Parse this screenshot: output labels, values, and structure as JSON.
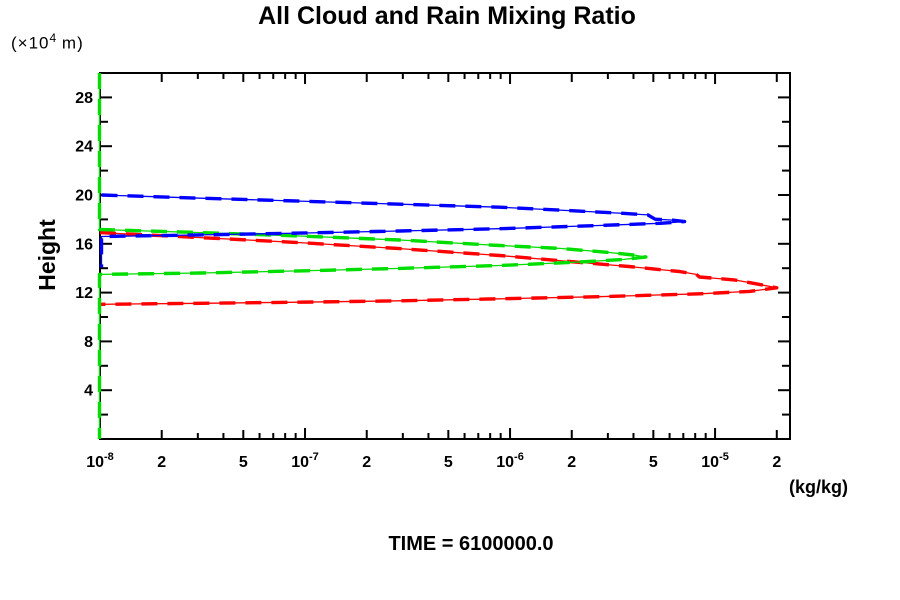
{
  "title": "All Cloud and Rain Mixing Ratio",
  "y_axis": {
    "title": "Height",
    "unit_prefix": "(×10",
    "unit_exp": "4",
    "unit_suffix": " m)"
  },
  "x_axis": {
    "unit": "(kg/kg)"
  },
  "footer": {
    "time_label": "TIME = 6100000.0"
  },
  "colors": {
    "series1": "#ff0000",
    "series2": "#00dd00",
    "series3": "#0000ff",
    "axis": "#000000"
  },
  "chart_data": {
    "type": "line",
    "title": "All Cloud and Rain Mixing Ratio",
    "xlabel": "(kg/kg)",
    "ylabel": "Height (×10^4 m)",
    "x_scale": "log",
    "xlim": [
      1e-08,
      2.32e-05
    ],
    "ylim": [
      0,
      30
    ],
    "grid": false,
    "legend": "none",
    "x_ticks_labeled": [
      {
        "value": 1e-08,
        "label": "10^-8"
      },
      {
        "value": 2e-08,
        "label": "2"
      },
      {
        "value": 5e-08,
        "label": "5"
      },
      {
        "value": 1e-07,
        "label": "10^-7"
      },
      {
        "value": 2e-07,
        "label": "2"
      },
      {
        "value": 5e-07,
        "label": "5"
      },
      {
        "value": 1e-06,
        "label": "10^-6"
      },
      {
        "value": 2e-06,
        "label": "2"
      },
      {
        "value": 5e-06,
        "label": "5"
      },
      {
        "value": 1e-05,
        "label": "10^-5"
      },
      {
        "value": 2e-05,
        "label": "2"
      }
    ],
    "y_ticks_labeled": [
      4,
      8,
      12,
      16,
      20,
      24,
      28
    ],
    "y_ticks_minor": [
      2,
      6,
      10,
      14,
      18,
      22,
      26
    ],
    "series": [
      {
        "name": "red-profile",
        "color": "#ff0000",
        "points": [
          [
            1e-08,
            16.92
          ],
          [
            3.1e-08,
            16.51
          ],
          [
            9.4e-08,
            16.1
          ],
          [
            2.9e-07,
            15.61
          ],
          [
            8.9e-07,
            15.04
          ],
          [
            1.95e-06,
            14.55
          ],
          [
            3.8e-06,
            14.14
          ],
          [
            6.7e-06,
            13.73
          ],
          [
            8.1e-06,
            13.49
          ],
          [
            8.4e-06,
            13.28
          ],
          [
            1.24e-05,
            13.04
          ],
          [
            1.55e-05,
            12.75
          ],
          [
            2e-05,
            12.39
          ],
          [
            1.47e-05,
            12.1
          ],
          [
            8.4e-06,
            11.9
          ],
          [
            2.7e-06,
            11.66
          ],
          [
            8.9e-07,
            11.49
          ],
          [
            2.9e-07,
            11.33
          ],
          [
            9.4e-08,
            11.21
          ],
          [
            3.1e-08,
            11.12
          ],
          [
            1e-08,
            11.04
          ]
        ]
      },
      {
        "name": "green-profile",
        "color": "#00dd00",
        "points": [
          [
            1e-08,
            30.0
          ],
          [
            1e-08,
            17.17
          ],
          [
            3.1e-08,
            16.92
          ],
          [
            9.4e-08,
            16.64
          ],
          [
            2.9e-07,
            16.31
          ],
          [
            8.9e-07,
            15.86
          ],
          [
            1.75e-06,
            15.62
          ],
          [
            3.05e-06,
            15.29
          ],
          [
            4e-06,
            15.08
          ],
          [
            4.6e-06,
            14.92
          ],
          [
            3.6e-06,
            14.72
          ],
          [
            2.2e-06,
            14.51
          ],
          [
            8.9e-07,
            14.22
          ],
          [
            2.9e-07,
            13.98
          ],
          [
            9.4e-08,
            13.78
          ],
          [
            3.1e-08,
            13.61
          ],
          [
            1e-08,
            13.49
          ],
          [
            1e-08,
            0.0
          ]
        ]
      },
      {
        "name": "blue-profile",
        "color": "#0000ff",
        "points": [
          [
            1e-08,
            20.0
          ],
          [
            3.1e-08,
            19.74
          ],
          [
            9.4e-08,
            19.5
          ],
          [
            2.9e-07,
            19.25
          ],
          [
            8.9e-07,
            19.0
          ],
          [
            1.95e-06,
            18.72
          ],
          [
            3.4e-06,
            18.52
          ],
          [
            4.7e-06,
            18.37
          ],
          [
            5.1e-06,
            18.02
          ],
          [
            6.1e-06,
            17.95
          ],
          [
            7.1e-06,
            17.82
          ],
          [
            5.4e-06,
            17.68
          ],
          [
            2.7e-06,
            17.5
          ],
          [
            8.9e-07,
            17.24
          ],
          [
            2.9e-07,
            17.05
          ],
          [
            9.4e-08,
            16.88
          ],
          [
            3.1e-08,
            16.73
          ],
          [
            1e-08,
            16.6
          ],
          [
            1e-08,
            14.06
          ]
        ]
      }
    ]
  }
}
